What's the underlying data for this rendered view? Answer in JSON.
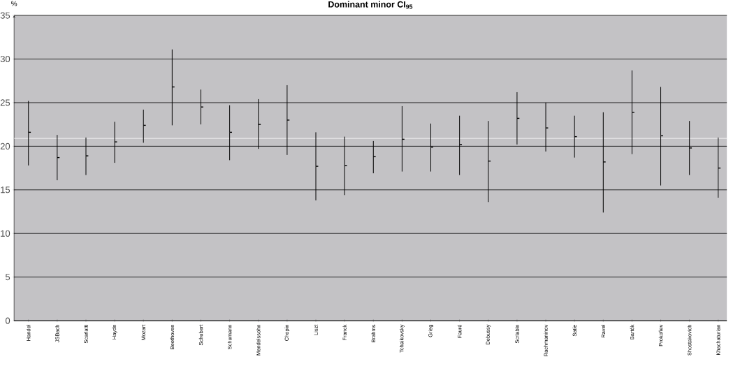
{
  "chart_data": {
    "type": "scatter",
    "title": "Dominant minor CI$_{95}$",
    "ylabel": "%",
    "categories": [
      "Handel",
      "JSBach",
      "Scarlatti",
      "Haydn",
      "Mozart",
      "Beethoven",
      "Schubert",
      "Schumann",
      "Mendelssohn",
      "Chopin",
      "Liszt",
      "Franck",
      "Brahms",
      "Tchaikovsky",
      "Grieg",
      "Fauré",
      "Debussy",
      "Scriabin",
      "Rachmaninov",
      "Satie",
      "Ravel",
      "Bartók",
      "Prokofiev",
      "Shostakovich",
      "Khachaturian"
    ],
    "values": [
      21.6,
      18.7,
      18.9,
      20.5,
      22.4,
      26.8,
      24.5,
      21.6,
      22.5,
      23.0,
      17.7,
      17.8,
      18.8,
      20.8,
      19.9,
      20.2,
      18.3,
      23.2,
      22.1,
      21.1,
      18.2,
      23.9,
      21.2,
      19.8,
      17.5
    ],
    "errors": [
      [
        17.8,
        25.2
      ],
      [
        16.1,
        21.3
      ],
      [
        16.7,
        21.0
      ],
      [
        18.1,
        22.8
      ],
      [
        20.4,
        24.2
      ],
      [
        22.4,
        31.1
      ],
      [
        22.5,
        26.5
      ],
      [
        18.4,
        24.7
      ],
      [
        19.7,
        25.4
      ],
      [
        19.0,
        27.0
      ],
      [
        13.8,
        21.6
      ],
      [
        14.4,
        21.1
      ],
      [
        16.9,
        20.6
      ],
      [
        17.1,
        24.6
      ],
      [
        17.1,
        22.6
      ],
      [
        16.7,
        23.5
      ],
      [
        13.6,
        22.9
      ],
      [
        20.2,
        26.2
      ],
      [
        19.4,
        25.0
      ],
      [
        18.7,
        23.5
      ],
      [
        12.4,
        23.9
      ],
      [
        19.1,
        28.7
      ],
      [
        15.5,
        26.8
      ],
      [
        16.7,
        22.9
      ],
      [
        14.1,
        21.0
      ]
    ],
    "color": "#000000",
    "ylim": [
      0,
      35
    ],
    "yticks": [
      0,
      5,
      10,
      15,
      20,
      25,
      30,
      35
    ],
    "grid": "y",
    "ref_lines": [
      {
        "axis": "y",
        "value": 20.9,
        "color": "#ffffff"
      }
    ]
  }
}
